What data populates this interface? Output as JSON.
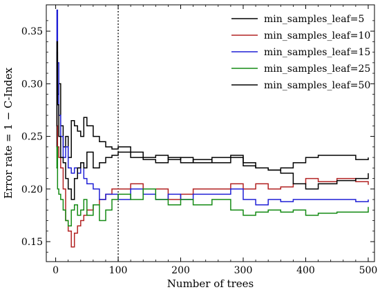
{
  "chart_data": {
    "type": "line",
    "xlabel": "Number of trees",
    "ylabel": "Error rate = 1 − C-Index",
    "xlim": [
      -15,
      510
    ],
    "ylim": [
      0.131,
      0.375
    ],
    "x_ticks": [
      0,
      100,
      200,
      300,
      400,
      500
    ],
    "y_ticks": [
      0.15,
      0.2,
      0.25,
      0.3,
      0.35
    ],
    "x_tick_labels": [
      "0",
      "100",
      "200",
      "300",
      "400",
      "500"
    ],
    "y_tick_labels": [
      "0.15",
      "0.20",
      "0.25",
      "0.30",
      "0.35"
    ],
    "vline_x": 100,
    "legend_position": "top-right",
    "series": [
      {
        "name": "min_samples_leaf=5",
        "color": "#000000",
        "x": [
          1,
          2,
          3,
          5,
          8,
          12,
          16,
          20,
          25,
          30,
          35,
          40,
          45,
          50,
          60,
          70,
          80,
          90,
          100,
          120,
          140,
          160,
          180,
          200,
          220,
          250,
          280,
          300,
          320,
          340,
          360,
          380,
          400,
          420,
          450,
          480,
          500
        ],
        "y": [
          0.24,
          0.33,
          0.29,
          0.3,
          0.26,
          0.24,
          0.25,
          0.23,
          0.265,
          0.26,
          0.255,
          0.25,
          0.268,
          0.26,
          0.25,
          0.245,
          0.24,
          0.238,
          0.24,
          0.235,
          0.23,
          0.232,
          0.228,
          0.23,
          0.225,
          0.23,
          0.232,
          0.225,
          0.22,
          0.218,
          0.22,
          0.225,
          0.23,
          0.232,
          0.232,
          0.228,
          0.23
        ]
      },
      {
        "name": "min_samples_leaf=10",
        "color": "#b22222",
        "x": [
          1,
          2,
          3,
          5,
          8,
          12,
          16,
          20,
          25,
          30,
          35,
          40,
          45,
          50,
          60,
          70,
          80,
          90,
          100,
          120,
          140,
          160,
          180,
          200,
          220,
          250,
          280,
          300,
          320,
          340,
          360,
          380,
          400,
          420,
          450,
          480,
          500
        ],
        "y": [
          0.27,
          0.26,
          0.24,
          0.23,
          0.22,
          0.2,
          0.17,
          0.16,
          0.145,
          0.158,
          0.165,
          0.17,
          0.175,
          0.18,
          0.185,
          0.19,
          0.195,
          0.2,
          0.2,
          0.205,
          0.2,
          0.2,
          0.19,
          0.195,
          0.2,
          0.2,
          0.205,
          0.2,
          0.205,
          0.2,
          0.202,
          0.205,
          0.21,
          0.207,
          0.21,
          0.207,
          0.204
        ]
      },
      {
        "name": "min_samples_leaf=15",
        "color": "#1f1fd6",
        "x": [
          1,
          2,
          3,
          5,
          8,
          12,
          16,
          20,
          25,
          30,
          35,
          40,
          45,
          50,
          60,
          70,
          80,
          90,
          100,
          120,
          140,
          160,
          180,
          200,
          220,
          250,
          280,
          300,
          320,
          340,
          360,
          380,
          400,
          420,
          450,
          480,
          500
        ],
        "y": [
          0.3,
          0.37,
          0.32,
          0.27,
          0.25,
          0.23,
          0.24,
          0.22,
          0.215,
          0.22,
          0.215,
          0.225,
          0.21,
          0.205,
          0.2,
          0.19,
          0.195,
          0.195,
          0.19,
          0.2,
          0.195,
          0.19,
          0.195,
          0.19,
          0.195,
          0.195,
          0.2,
          0.19,
          0.185,
          0.19,
          0.188,
          0.19,
          0.19,
          0.19,
          0.19,
          0.188,
          0.19
        ]
      },
      {
        "name": "min_samples_leaf=25",
        "color": "#138a13",
        "x": [
          1,
          2,
          3,
          5,
          8,
          12,
          16,
          20,
          25,
          30,
          35,
          40,
          45,
          50,
          60,
          70,
          80,
          90,
          100,
          120,
          140,
          160,
          180,
          200,
          220,
          250,
          280,
          300,
          320,
          340,
          360,
          380,
          400,
          420,
          450,
          480,
          500
        ],
        "y": [
          0.22,
          0.24,
          0.2,
          0.195,
          0.19,
          0.18,
          0.17,
          0.165,
          0.18,
          0.185,
          0.175,
          0.18,
          0.19,
          0.175,
          0.185,
          0.17,
          0.18,
          0.19,
          0.195,
          0.19,
          0.2,
          0.19,
          0.185,
          0.19,
          0.185,
          0.19,
          0.18,
          0.175,
          0.178,
          0.18,
          0.178,
          0.18,
          0.175,
          0.177,
          0.178,
          0.178,
          0.183
        ]
      },
      {
        "name": "min_samples_leaf=50",
        "color": "#000000",
        "x": [
          1,
          2,
          3,
          5,
          8,
          12,
          16,
          20,
          25,
          30,
          35,
          40,
          45,
          50,
          60,
          70,
          80,
          90,
          100,
          120,
          140,
          160,
          180,
          200,
          220,
          250,
          280,
          300,
          320,
          340,
          360,
          380,
          400,
          420,
          450,
          480,
          500
        ],
        "y": [
          0.26,
          0.34,
          0.28,
          0.25,
          0.23,
          0.225,
          0.21,
          0.2,
          0.19,
          0.21,
          0.22,
          0.225,
          0.22,
          0.235,
          0.22,
          0.225,
          0.23,
          0.232,
          0.235,
          0.23,
          0.228,
          0.225,
          0.23,
          0.225,
          0.228,
          0.225,
          0.23,
          0.222,
          0.22,
          0.218,
          0.215,
          0.205,
          0.2,
          0.205,
          0.208,
          0.21,
          0.215
        ]
      }
    ]
  }
}
